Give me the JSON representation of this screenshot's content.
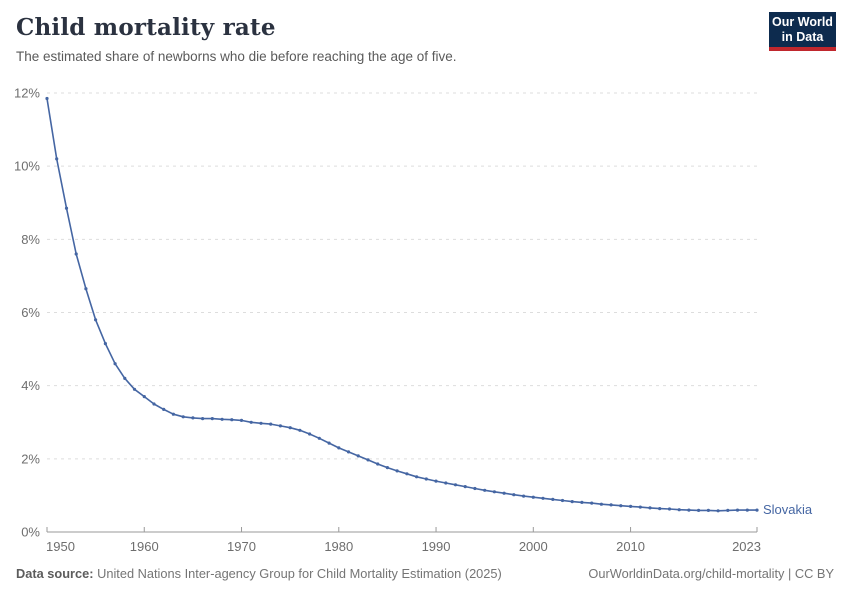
{
  "header": {
    "title": "Child mortality rate",
    "subtitle": "The estimated share of newborns who die before reaching the age of five.",
    "logo": {
      "line1": "Our World",
      "line2": "in Data"
    }
  },
  "footer": {
    "data_source_label": "Data source:",
    "data_source_value": "United Nations Inter-agency Group for Child Mortality Estimation (2025)",
    "url": "OurWorldinData.org/child-mortality",
    "separator": " | ",
    "license": "CC BY"
  },
  "colors": {
    "line": "#4566a3",
    "gridline": "#dddddd",
    "axis": "#9a9a9a",
    "tick_text": "#6e6e6e",
    "logo_bg": "#0d2b4e",
    "logo_stripe": "#c0272d",
    "title_text": "#2b3240"
  },
  "chart_data": {
    "type": "line",
    "title": "Child mortality rate",
    "subtitle": "The estimated share of newborns who die before reaching the age of five.",
    "xlabel": "",
    "ylabel": "",
    "ylim": [
      0,
      12
    ],
    "yticks": [
      0,
      2,
      4,
      6,
      8,
      10,
      12
    ],
    "ytick_suffix": "%",
    "xticks": [
      1950,
      1960,
      1970,
      1980,
      1990,
      2000,
      2010,
      2023
    ],
    "grid": "horizontal-dashed",
    "legend_position": "end-of-line-label",
    "x": [
      1950,
      1951,
      1952,
      1953,
      1954,
      1955,
      1956,
      1957,
      1958,
      1959,
      1960,
      1961,
      1962,
      1963,
      1964,
      1965,
      1966,
      1967,
      1968,
      1969,
      1970,
      1971,
      1972,
      1973,
      1974,
      1975,
      1976,
      1977,
      1978,
      1979,
      1980,
      1981,
      1982,
      1983,
      1984,
      1985,
      1986,
      1987,
      1988,
      1989,
      1990,
      1991,
      1992,
      1993,
      1994,
      1995,
      1996,
      1997,
      1998,
      1999,
      2000,
      2001,
      2002,
      2003,
      2004,
      2005,
      2006,
      2007,
      2008,
      2009,
      2010,
      2011,
      2012,
      2013,
      2014,
      2015,
      2016,
      2017,
      2018,
      2019,
      2020,
      2021,
      2022,
      2023
    ],
    "series": [
      {
        "name": "Slovakia",
        "values": [
          11.85,
          10.2,
          8.85,
          7.6,
          6.65,
          5.8,
          5.15,
          4.6,
          4.2,
          3.9,
          3.7,
          3.5,
          3.35,
          3.22,
          3.15,
          3.12,
          3.1,
          3.1,
          3.08,
          3.07,
          3.05,
          3.0,
          2.97,
          2.95,
          2.9,
          2.85,
          2.78,
          2.68,
          2.56,
          2.43,
          2.3,
          2.19,
          2.08,
          1.97,
          1.86,
          1.76,
          1.67,
          1.59,
          1.51,
          1.45,
          1.39,
          1.34,
          1.29,
          1.24,
          1.19,
          1.14,
          1.1,
          1.06,
          1.02,
          0.98,
          0.95,
          0.92,
          0.89,
          0.86,
          0.83,
          0.81,
          0.79,
          0.76,
          0.74,
          0.72,
          0.7,
          0.68,
          0.66,
          0.64,
          0.63,
          0.61,
          0.6,
          0.59,
          0.59,
          0.58,
          0.59,
          0.6,
          0.6,
          0.6
        ]
      }
    ]
  }
}
